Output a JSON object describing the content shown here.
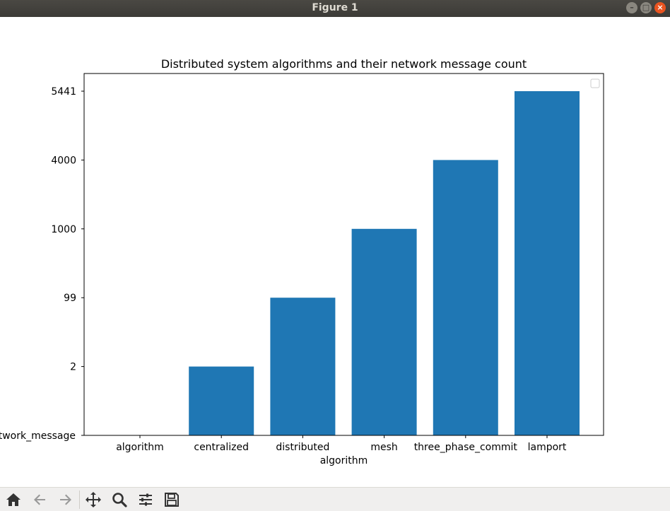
{
  "window": {
    "title": "Figure 1"
  },
  "colors": {
    "bar": "#1f77b4",
    "titlebar": "#3c3b37",
    "close": "#e95420"
  },
  "chart_data": {
    "type": "bar",
    "title": "Distributed system algorithms and their network message count",
    "xlabel": "algorithm",
    "ylabel": "network_message",
    "categories": [
      "algorithm",
      "centralized",
      "distributed",
      "mesh",
      "three_phase_commit",
      "lamport"
    ],
    "y_tick_labels": [
      "network_message",
      "2",
      "99",
      "1000",
      "4000",
      "5441"
    ],
    "values": [
      null,
      "2",
      "99",
      "1000",
      "4000",
      "5441"
    ],
    "y_axis_kind": "categorical",
    "grid": false,
    "legend": "top-right (empty)"
  },
  "toolbar": {
    "icons": [
      "home-icon",
      "back-icon",
      "forward-icon",
      "pan-icon",
      "zoom-icon",
      "configure-icon",
      "save-icon"
    ]
  }
}
